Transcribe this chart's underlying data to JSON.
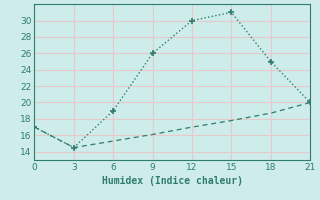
{
  "xlabel": "Humidex (Indice chaleur)",
  "upper_x": [
    0,
    3,
    6,
    9,
    12,
    15,
    18,
    21
  ],
  "upper_y": [
    17,
    14.5,
    19,
    26,
    30,
    31,
    25,
    20
  ],
  "lower_x": [
    0,
    3,
    6,
    9,
    12,
    15,
    18,
    21
  ],
  "lower_y": [
    17,
    14.5,
    15.3,
    16.1,
    17.0,
    17.8,
    18.7,
    20
  ],
  "line_color": "#2e7d6e",
  "bg_color": "#cdecea",
  "grid_color": "#b8dbd9",
  "xlim": [
    0,
    21
  ],
  "ylim": [
    13,
    32
  ],
  "xticks": [
    0,
    3,
    6,
    9,
    12,
    15,
    18,
    21
  ],
  "yticks": [
    14,
    16,
    18,
    20,
    22,
    24,
    26,
    28,
    30
  ]
}
